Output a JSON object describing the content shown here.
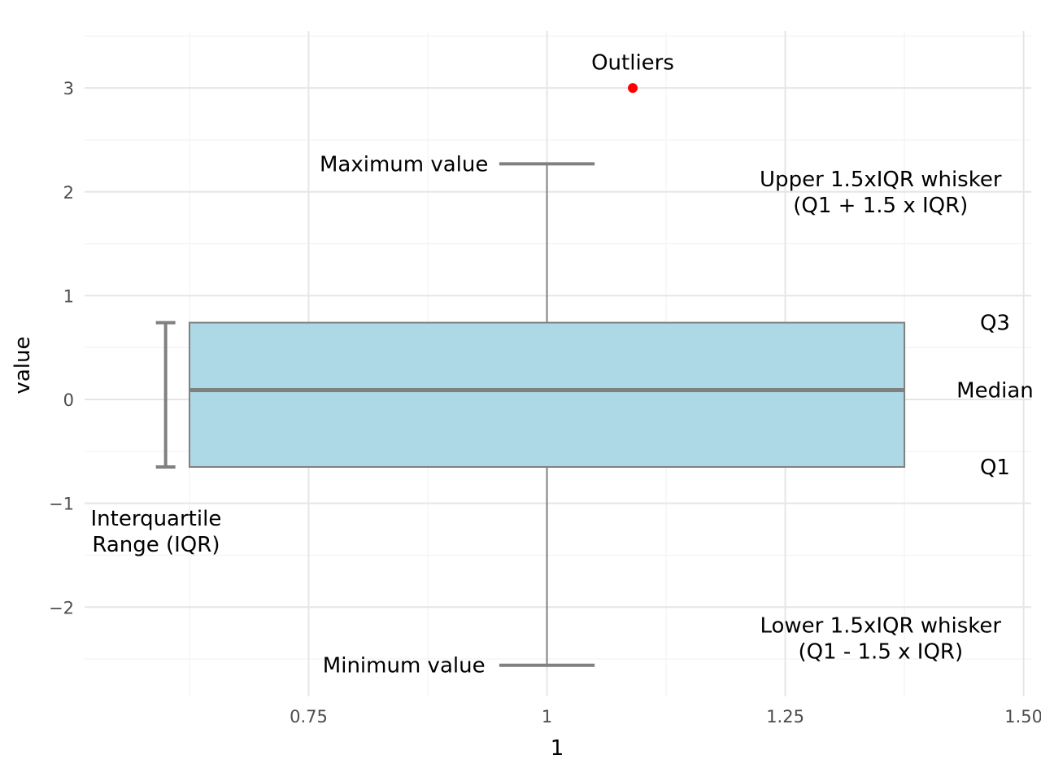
{
  "chart_data": {
    "type": "box",
    "xlabel": "1",
    "ylabel": "value",
    "xlim": [
      0.515,
      1.508
    ],
    "ylim": [
      -2.86,
      3.55
    ],
    "x_ticks": [
      0.75,
      1.0,
      1.25,
      1.5
    ],
    "x_tick_labels": [
      "0.75",
      "1",
      "1.25",
      "1.50"
    ],
    "y_ticks": [
      -2,
      -1,
      0,
      1,
      2,
      3
    ],
    "y_tick_labels": [
      "−2",
      "−1",
      "0",
      "1",
      "2",
      "3"
    ],
    "grid": true,
    "box": {
      "x": 1.0,
      "x_range": [
        0.625,
        1.375
      ],
      "q1": -0.65,
      "median": 0.09,
      "q3": 0.74,
      "whisker_low": -2.56,
      "whisker_high": 2.27,
      "cap_width": 0.1,
      "fill_color": "#add8e6",
      "line_color": "#808080"
    },
    "outliers": [
      {
        "x": 1.09,
        "y": 3.0
      }
    ],
    "outlier_color": "#ff0000",
    "iqr_bracket": {
      "x": 0.6,
      "low": -0.65,
      "high": 0.74
    },
    "annotations": [
      {
        "id": "outliers",
        "lines": [
          "Outliers"
        ],
        "x": 1.09,
        "y": 3.25,
        "color": "#ff0000",
        "anchor": "middle"
      },
      {
        "id": "maximum",
        "lines": [
          "Maximum value"
        ],
        "x": 0.85,
        "y": 2.27,
        "color": "#000000",
        "anchor": "middle"
      },
      {
        "id": "upper-whisker",
        "lines": [
          "Upper 1.5xIQR whisker",
          "(Q1 + 1.5 x IQR)"
        ],
        "x": 1.35,
        "y": 2.0,
        "color": "#000000",
        "anchor": "middle"
      },
      {
        "id": "q3",
        "lines": [
          "Q3"
        ],
        "x": 1.47,
        "y": 0.74,
        "color": "#000000",
        "anchor": "middle"
      },
      {
        "id": "median",
        "lines": [
          "Median"
        ],
        "x": 1.47,
        "y": 0.09,
        "color": "#000000",
        "anchor": "middle"
      },
      {
        "id": "q1",
        "lines": [
          "Q1"
        ],
        "x": 1.47,
        "y": -0.65,
        "color": "#000000",
        "anchor": "middle"
      },
      {
        "id": "iqr",
        "lines": [
          "Interquartile",
          "Range (IQR)"
        ],
        "x": 0.59,
        "y": -1.27,
        "color": "#000000",
        "anchor": "middle"
      },
      {
        "id": "lower-whisker",
        "lines": [
          "Lower 1.5xIQR whisker",
          "(Q1 - 1.5 x IQR)"
        ],
        "x": 1.35,
        "y": -2.3,
        "color": "#000000",
        "anchor": "middle"
      },
      {
        "id": "minimum",
        "lines": [
          "Minimum value"
        ],
        "x": 0.85,
        "y": -2.56,
        "color": "#000000",
        "anchor": "middle"
      }
    ]
  }
}
